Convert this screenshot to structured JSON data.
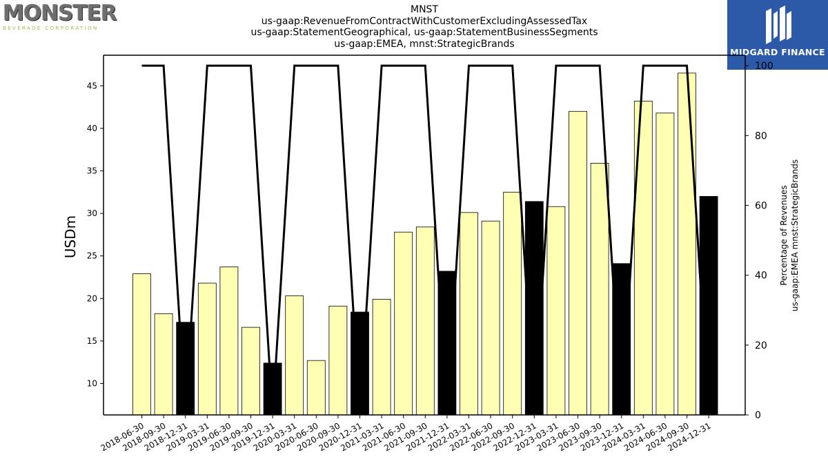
{
  "header": {
    "lines": [
      "MNST",
      "us-gaap:RevenueFromContractWithCustomerExcludingAssessedTax",
      "us-gaap:StatementGeographical, us-gaap:StatementBusinessSegments",
      "us-gaap:EMEA, mnst:StrategicBrands"
    ]
  },
  "logos": {
    "left_main": "MONSTER",
    "left_sub": "BEVERAGE CORPORATION",
    "right_name": "MIDGARD FINANCE"
  },
  "colors": {
    "bar_normal": "#ffffb3",
    "bar_highlight": "#000000",
    "line": "#000000",
    "right_logo_bg": "#2c5aa8"
  },
  "chart_data": {
    "type": "bar",
    "categories": [
      "2018-06-30",
      "2018-09-30",
      "2018-12-31",
      "2019-03-31",
      "2019-06-30",
      "2019-09-30",
      "2019-12-31",
      "2020-03-31",
      "2020-06-30",
      "2020-09-30",
      "2020-12-31",
      "2021-03-31",
      "2021-06-30",
      "2021-09-30",
      "2021-12-31",
      "2022-03-31",
      "2022-06-30",
      "2022-09-30",
      "2022-12-31",
      "2023-03-31",
      "2023-06-30",
      "2023-09-30",
      "2023-12-31",
      "2024-03-31",
      "2024-06-30",
      "2024-09-30",
      "2024-12-31"
    ],
    "values": [
      22.9,
      18.2,
      17.2,
      21.8,
      23.7,
      16.6,
      12.4,
      20.3,
      12.7,
      19.1,
      18.4,
      19.9,
      27.8,
      28.4,
      23.2,
      30.1,
      29.1,
      32.5,
      31.4,
      30.8,
      42.0,
      35.9,
      24.1,
      43.2,
      41.8,
      46.5,
      32.0
    ],
    "highlight": [
      false,
      false,
      true,
      false,
      false,
      false,
      true,
      false,
      false,
      false,
      true,
      false,
      false,
      false,
      true,
      false,
      false,
      false,
      true,
      false,
      false,
      false,
      true,
      false,
      false,
      false,
      true
    ],
    "line_values": [
      100,
      100,
      0,
      100,
      100,
      100,
      0,
      100,
      100,
      100,
      0,
      100,
      100,
      100,
      0,
      100,
      100,
      100,
      0,
      100,
      100,
      100,
      0,
      100,
      100,
      100,
      0
    ],
    "ylabel": "USDm",
    "y2label_lines": [
      "Percentage of Revenues",
      "us-gaap:EMEA mnst:StrategicBrands"
    ],
    "ylim": [
      6.3,
      48.6
    ],
    "yticks": [
      10,
      15,
      20,
      25,
      30,
      35,
      40,
      45
    ],
    "y2lim": [
      0,
      103
    ],
    "y2ticks": [
      0,
      20,
      40,
      60,
      80,
      100
    ]
  }
}
